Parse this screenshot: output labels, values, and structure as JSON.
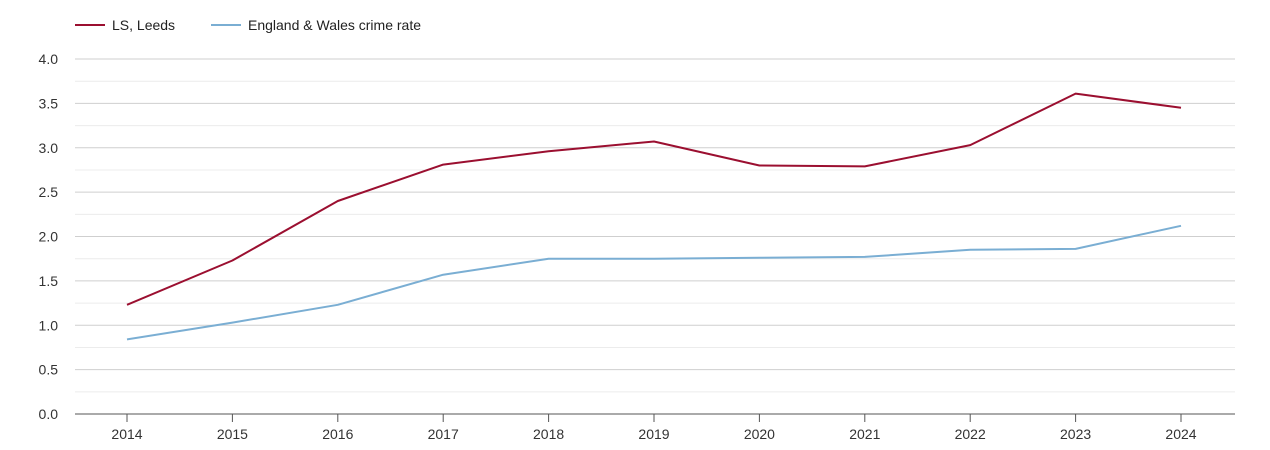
{
  "chart_data": {
    "type": "line",
    "title": "",
    "xlabel": "",
    "ylabel": "",
    "x": [
      "2014",
      "2015",
      "2016",
      "2017",
      "2018",
      "2019",
      "2020",
      "2021",
      "2022",
      "2023",
      "2024"
    ],
    "ylim": [
      0,
      4
    ],
    "y_ticks": [
      "0.0",
      "0.5",
      "1.0",
      "1.5",
      "2.0",
      "2.5",
      "3.0",
      "3.5",
      "4.0"
    ],
    "grid": true,
    "legend_position": "top-left",
    "series": [
      {
        "name": "LS, Leeds",
        "color": "#9b0f30",
        "values": [
          1.23,
          1.73,
          2.4,
          2.81,
          2.96,
          3.07,
          2.8,
          2.79,
          3.03,
          3.61,
          3.45
        ]
      },
      {
        "name": "England & Wales crime rate",
        "color": "#7aaed3",
        "values": [
          0.84,
          1.03,
          1.23,
          1.57,
          1.75,
          1.75,
          1.76,
          1.77,
          1.85,
          1.86,
          2.12
        ]
      }
    ]
  }
}
